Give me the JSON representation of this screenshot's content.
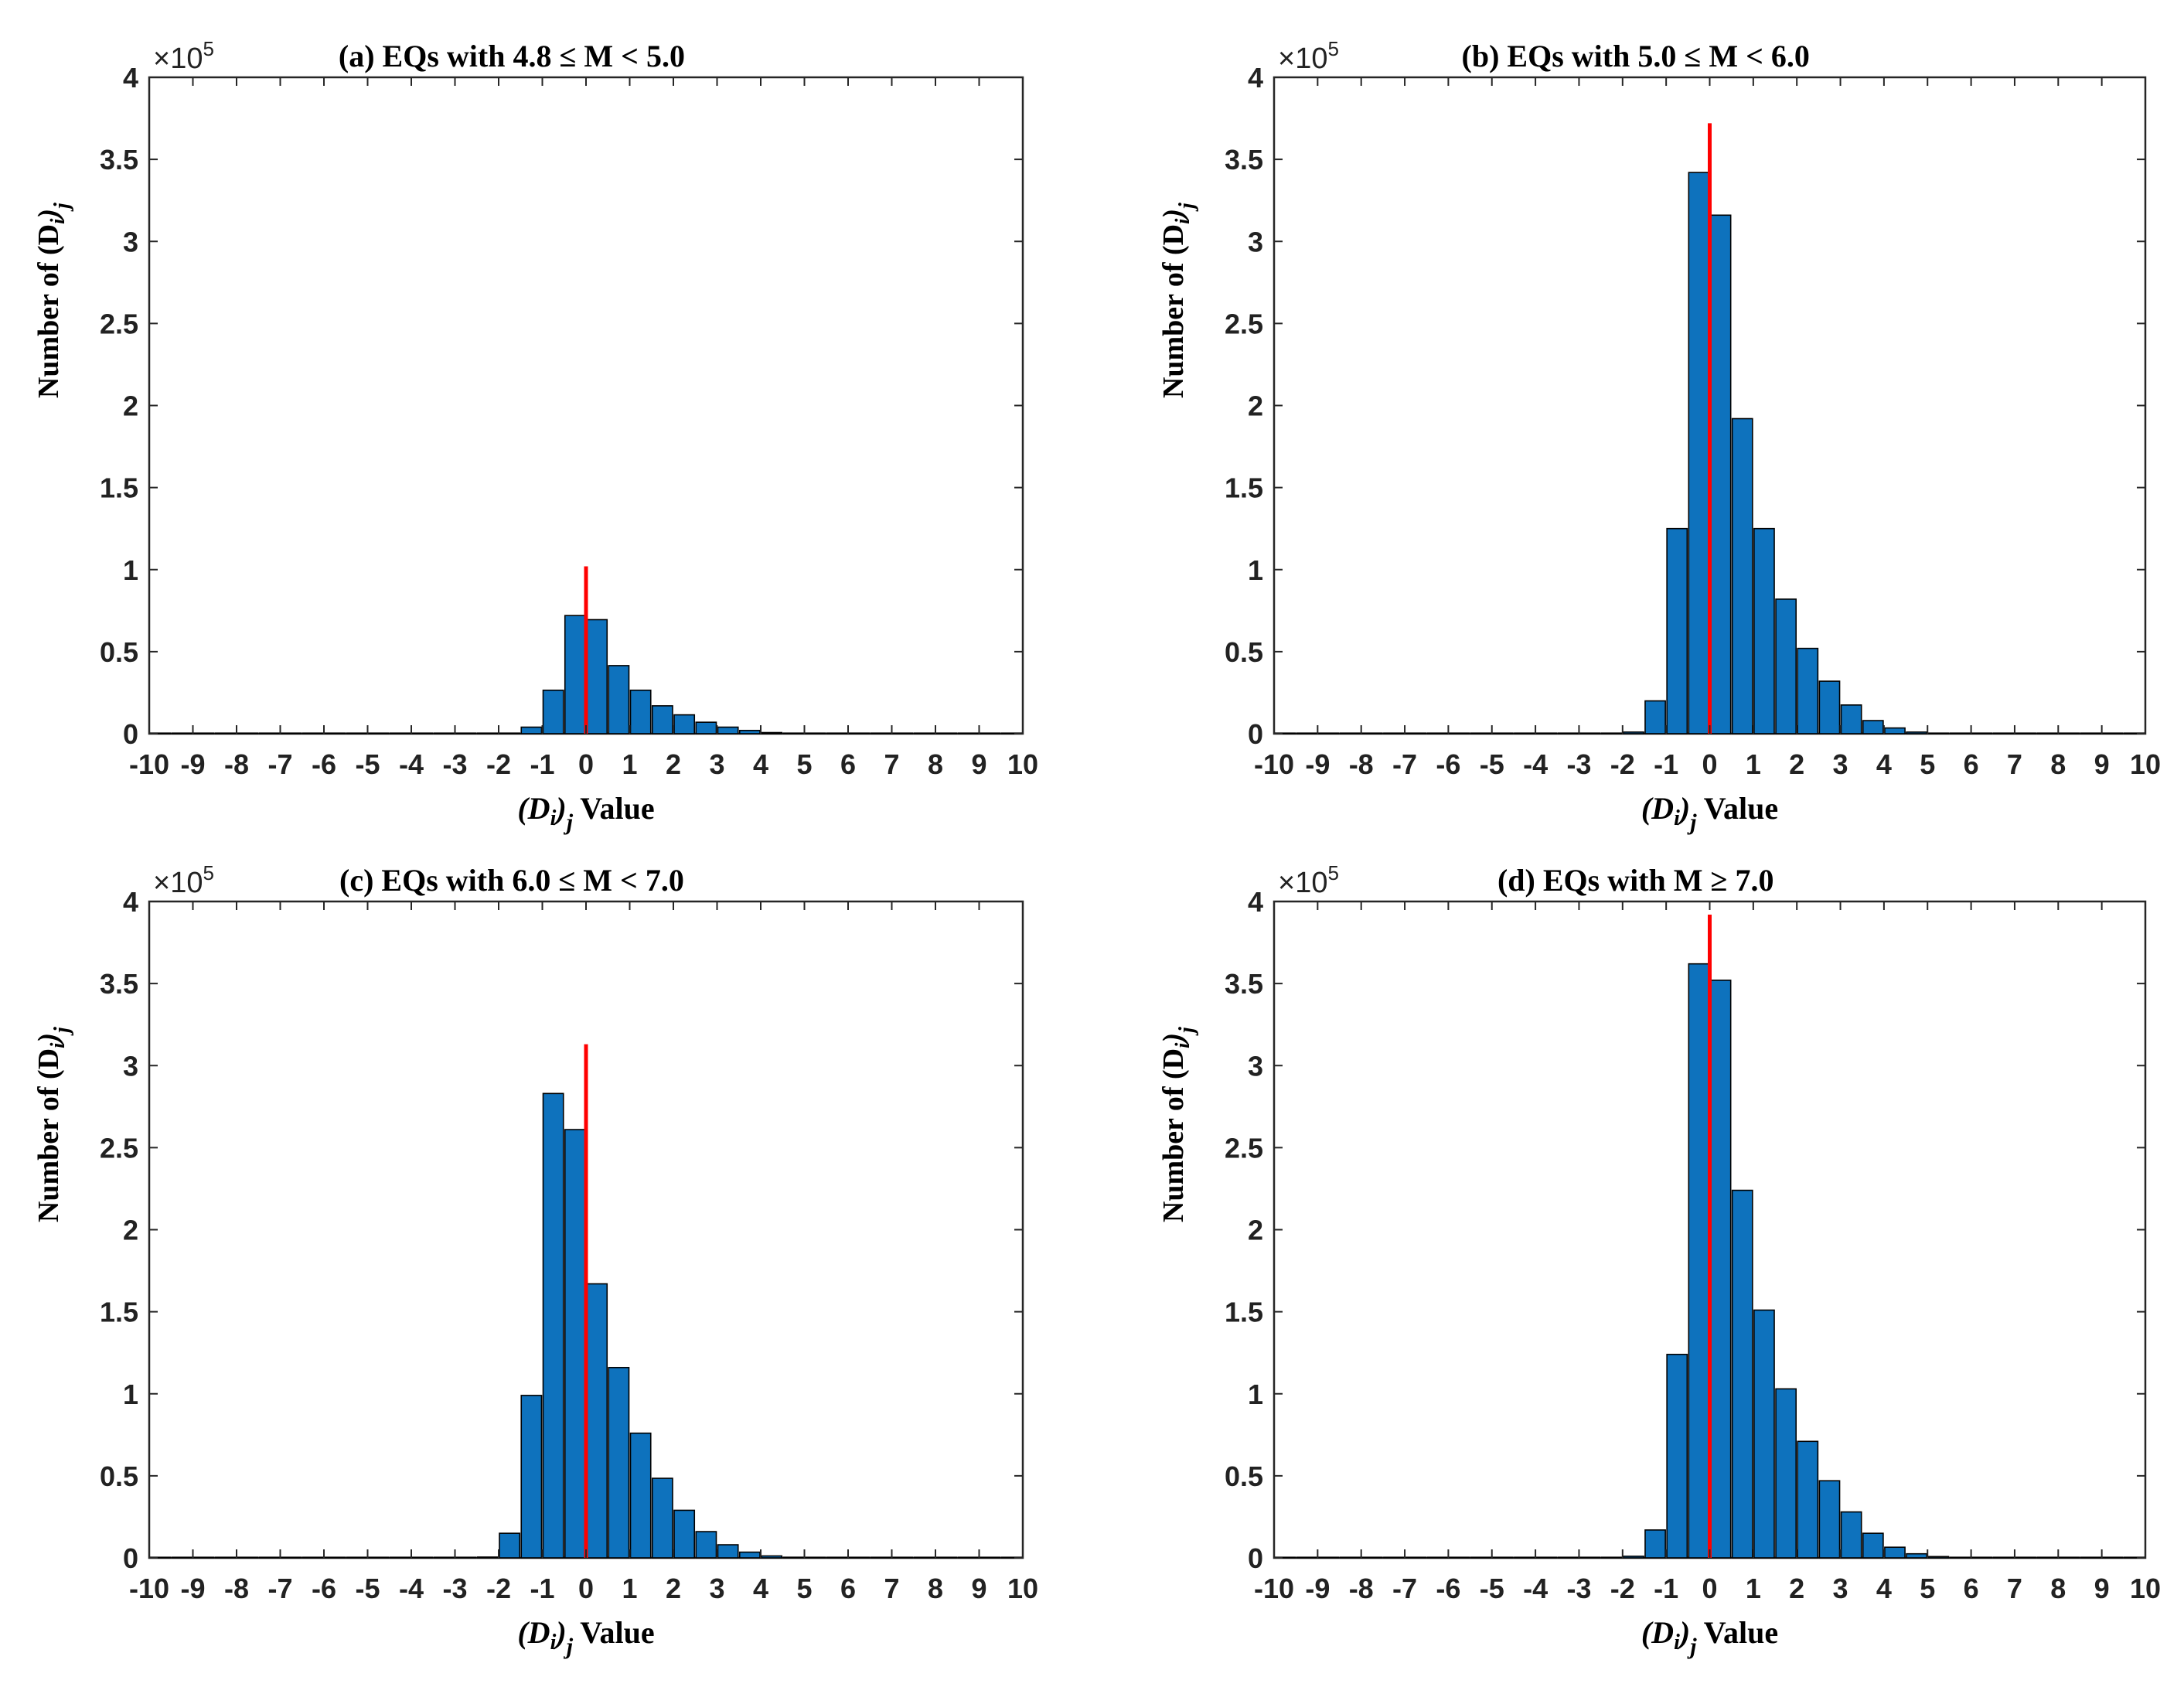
{
  "figure": {
    "background": "#ffffff",
    "bar_color": "#0E72BD",
    "bar_edge": "#000000",
    "refline_color": "#FF0000"
  },
  "chart_data": [
    {
      "type": "bar",
      "title": "(a)   EQs with 4.8 ≤ M < 5.0",
      "xlabel": {
        "prefix": "(D",
        "sub_i": "i",
        "paren": ")",
        "sub_j": "j",
        "suffix": " Value"
      },
      "ylabel": {
        "prefix": "Number of  (D",
        "sub_i": "i",
        "paren": ")",
        "sub_j": "j"
      },
      "multiplier": {
        "base": "×10",
        "exp": "5"
      },
      "xlim": [
        -10,
        10
      ],
      "ylim": [
        0,
        4
      ],
      "xticks": [
        "-10",
        "-9",
        "-8",
        "-7",
        "-6",
        "-5",
        "-4",
        "-3",
        "-2",
        "-1",
        "0",
        "1",
        "2",
        "3",
        "4",
        "5",
        "6",
        "7",
        "8",
        "9",
        "10"
      ],
      "yticks": [
        "0",
        "0.5",
        "1",
        "1.5",
        "2",
        "2.5",
        "3",
        "3.5",
        "4"
      ],
      "bin_width": 0.5,
      "x": [
        -10,
        -9.5,
        -9,
        -8.5,
        -8,
        -7.5,
        -7,
        -6.5,
        -6,
        -5.5,
        -5,
        -4.5,
        -4,
        -3.5,
        -3,
        -2.5,
        -2,
        -1.5,
        -1,
        -0.5,
        0,
        0.5,
        1,
        1.5,
        2,
        2.5,
        3,
        3.5,
        4,
        4.5,
        5,
        5.5,
        6,
        6.5,
        7,
        7.5,
        8,
        8.5,
        9,
        9.5
      ],
      "values": [
        0,
        0,
        0,
        0,
        0,
        0,
        0,
        0,
        0,
        0,
        0,
        0,
        0,
        0,
        0,
        0,
        0.001,
        0.04,
        0.265,
        0.72,
        0.695,
        0.415,
        0.265,
        0.17,
        0.115,
        0.07,
        0.04,
        0.02,
        0.007,
        0.003,
        0.001,
        0,
        0,
        0,
        0,
        0,
        0,
        0,
        0,
        0
      ],
      "refline": {
        "x": 0,
        "y": 1.02
      }
    },
    {
      "type": "bar",
      "title": "(b)   EQs with 5.0 ≤ M < 6.0",
      "xlabel": {
        "prefix": "(D",
        "sub_i": "i",
        "paren": ")",
        "sub_j": "j",
        "suffix": " Value"
      },
      "ylabel": {
        "prefix": "Number of  (D",
        "sub_i": "i",
        "paren": ")",
        "sub_j": "j"
      },
      "multiplier": {
        "base": "×10",
        "exp": "5"
      },
      "xlim": [
        -10,
        10
      ],
      "ylim": [
        0,
        4
      ],
      "xticks": [
        "-10",
        "-9",
        "-8",
        "-7",
        "-6",
        "-5",
        "-4",
        "-3",
        "-2",
        "-1",
        "0",
        "1",
        "2",
        "3",
        "4",
        "5",
        "6",
        "7",
        "8",
        "9",
        "10"
      ],
      "yticks": [
        "0",
        "0.5",
        "1",
        "1.5",
        "2",
        "2.5",
        "3",
        "3.5",
        "4"
      ],
      "bin_width": 0.5,
      "x": [
        -10,
        -9.5,
        -9,
        -8.5,
        -8,
        -7.5,
        -7,
        -6.5,
        -6,
        -5.5,
        -5,
        -4.5,
        -4,
        -3.5,
        -3,
        -2.5,
        -2,
        -1.5,
        -1,
        -0.5,
        0,
        0.5,
        1,
        1.5,
        2,
        2.5,
        3,
        3.5,
        4,
        4.5,
        5,
        5.5,
        6,
        6.5,
        7,
        7.5,
        8,
        8.5,
        9,
        9.5
      ],
      "values": [
        0,
        0,
        0,
        0,
        0,
        0,
        0,
        0,
        0,
        0,
        0,
        0,
        0,
        0,
        0,
        0,
        0.01,
        0.2,
        1.25,
        3.42,
        3.16,
        1.92,
        1.25,
        0.82,
        0.52,
        0.32,
        0.175,
        0.08,
        0.035,
        0.01,
        0.003,
        0,
        0,
        0,
        0,
        0,
        0,
        0,
        0,
        0
      ],
      "refline": {
        "x": 0,
        "y": 3.72
      }
    },
    {
      "type": "bar",
      "title": "(c)   EQs with 6.0 ≤ M < 7.0",
      "xlabel": {
        "prefix": "(D",
        "sub_i": "i",
        "paren": ")",
        "sub_j": "j",
        "suffix": " Value"
      },
      "ylabel": {
        "prefix": "Number of  (D",
        "sub_i": "i",
        "paren": ")",
        "sub_j": "j"
      },
      "multiplier": {
        "base": "×10",
        "exp": "5"
      },
      "xlim": [
        -10,
        10
      ],
      "ylim": [
        0,
        4
      ],
      "xticks": [
        "-10",
        "-9",
        "-8",
        "-7",
        "-6",
        "-5",
        "-4",
        "-3",
        "-2",
        "-1",
        "0",
        "1",
        "2",
        "3",
        "4",
        "5",
        "6",
        "7",
        "8",
        "9",
        "10"
      ],
      "yticks": [
        "0",
        "0.5",
        "1",
        "1.5",
        "2",
        "2.5",
        "3",
        "3.5",
        "4"
      ],
      "bin_width": 0.5,
      "x": [
        -10,
        -9.5,
        -9,
        -8.5,
        -8,
        -7.5,
        -7,
        -6.5,
        -6,
        -5.5,
        -5,
        -4.5,
        -4,
        -3.5,
        -3,
        -2.5,
        -2,
        -1.5,
        -1,
        -0.5,
        0,
        0.5,
        1,
        1.5,
        2,
        2.5,
        3,
        3.5,
        4,
        4.5,
        5,
        5.5,
        6,
        6.5,
        7,
        7.5,
        8,
        8.5,
        9,
        9.5
      ],
      "values": [
        0,
        0,
        0,
        0,
        0,
        0,
        0,
        0,
        0,
        0,
        0,
        0,
        0,
        0,
        0,
        0.005,
        0.15,
        0.99,
        2.83,
        2.61,
        1.67,
        1.16,
        0.76,
        0.485,
        0.29,
        0.16,
        0.08,
        0.035,
        0.012,
        0.004,
        0.001,
        0,
        0,
        0,
        0,
        0,
        0,
        0,
        0,
        0
      ],
      "refline": {
        "x": 0,
        "y": 3.13
      }
    },
    {
      "type": "bar",
      "title": "(d)   EQs with M ≥ 7.0",
      "xlabel": {
        "prefix": "(D",
        "sub_i": "i",
        "paren": ")",
        "sub_j": "j",
        "suffix": " Value"
      },
      "ylabel": {
        "prefix": "Number of  (D",
        "sub_i": "i",
        "paren": ")",
        "sub_j": "j"
      },
      "multiplier": {
        "base": "×10",
        "exp": "5"
      },
      "xlim": [
        -10,
        10
      ],
      "ylim": [
        0,
        4
      ],
      "xticks": [
        "-10",
        "-9",
        "-8",
        "-7",
        "-6",
        "-5",
        "-4",
        "-3",
        "-2",
        "-1",
        "0",
        "1",
        "2",
        "3",
        "4",
        "5",
        "6",
        "7",
        "8",
        "9",
        "10"
      ],
      "yticks": [
        "0",
        "0.5",
        "1",
        "1.5",
        "2",
        "2.5",
        "3",
        "3.5",
        "4"
      ],
      "bin_width": 0.5,
      "x": [
        -10,
        -9.5,
        -9,
        -8.5,
        -8,
        -7.5,
        -7,
        -6.5,
        -6,
        -5.5,
        -5,
        -4.5,
        -4,
        -3.5,
        -3,
        -2.5,
        -2,
        -1.5,
        -1,
        -0.5,
        0,
        0.5,
        1,
        1.5,
        2,
        2.5,
        3,
        3.5,
        4,
        4.5,
        5,
        5.5,
        6,
        6.5,
        7,
        7.5,
        8,
        8.5,
        9,
        9.5
      ],
      "values": [
        0,
        0,
        0,
        0,
        0,
        0,
        0,
        0,
        0,
        0,
        0,
        0,
        0,
        0,
        0,
        0,
        0.01,
        0.17,
        1.24,
        3.62,
        3.52,
        2.24,
        1.51,
        1.03,
        0.71,
        0.47,
        0.28,
        0.15,
        0.065,
        0.025,
        0.008,
        0.002,
        0,
        0,
        0,
        0,
        0,
        0,
        0,
        0
      ],
      "refline": {
        "x": 0,
        "y": 3.92
      }
    }
  ]
}
